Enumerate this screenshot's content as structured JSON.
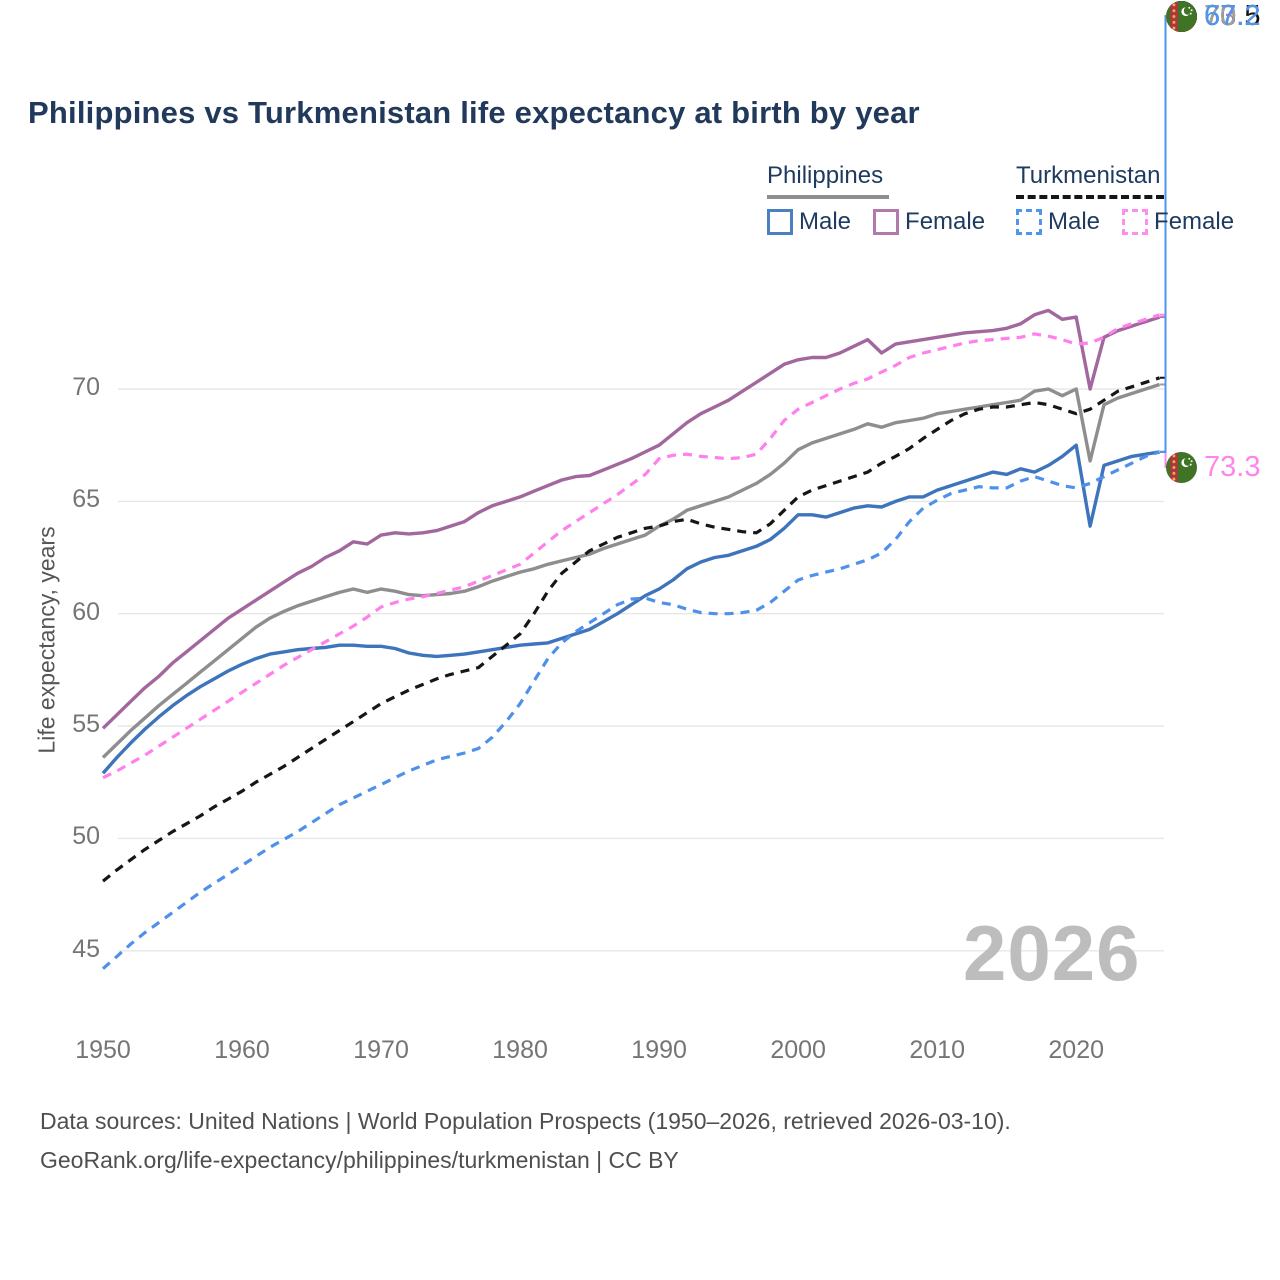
{
  "title": "Philippines vs Turkmenistan life expectancy at birth by year",
  "legend": {
    "philippines": {
      "label": "Philippines",
      "male_label": "Male",
      "female_label": "Female"
    },
    "turkmenistan": {
      "label": "Turkmenistan",
      "male_label": "Male",
      "female_label": "Female"
    }
  },
  "y_axis": {
    "label": "Life expectancy, years",
    "ticks": [
      70,
      65,
      60,
      55,
      50,
      45
    ]
  },
  "x_axis": {
    "ticks": [
      1950,
      1960,
      1970,
      1980,
      1990,
      2000,
      2010,
      2020
    ]
  },
  "watermark": "2026",
  "end_labels": [
    {
      "series": "tm_female",
      "flag": "turkmenistan-flag",
      "value": "73.3",
      "color": "#ff85e9"
    },
    {
      "series": "ph_female",
      "flag": "philippines-flag",
      "value": "73.2",
      "color": "#b57fb2"
    },
    {
      "series": "tm_total",
      "flag": "turkmenistan-flag",
      "value": "70.5",
      "color": "#121212"
    },
    {
      "series": "ph_total",
      "flag": "philippines-flag",
      "value": "70.2",
      "color": "#a0a0a0"
    },
    {
      "series": "ph_male",
      "flag": "philippines-flag",
      "value": "67.2",
      "color": "#4a7cc9"
    },
    {
      "series": "tm_male",
      "flag": "turkmenistan-flag",
      "value": "67.2",
      "color": "#4e95ec"
    }
  ],
  "footer": {
    "line1": "Data sources: United Nations | World Population Prospects (1950–2026, retrieved 2026-03-10).",
    "line2": "GeoRank.org/life-expectancy/philippines/turkmenistan | CC BY"
  },
  "colors": {
    "title": "#21395b",
    "grid": "#e7e7e7",
    "tick_text": "#757575",
    "watermark": "#bdbdbd",
    "footer_text": "#4f4f4f"
  },
  "chart_data": {
    "type": "line",
    "title": "Philippines vs Turkmenistan life expectancy at birth by year",
    "xlabel": "",
    "ylabel": "Life expectancy, years",
    "x_start": 1950,
    "x_end": 2026,
    "xticks": [
      1950,
      1960,
      1970,
      1980,
      1990,
      2000,
      2010,
      2020
    ],
    "yticks": [
      45,
      50,
      55,
      60,
      65,
      70
    ],
    "ylim": [
      43,
      75
    ],
    "grid": true,
    "legend_position": "top-right",
    "series": [
      {
        "id": "ph_total",
        "name": "Philippines — Total",
        "country": "Philippines",
        "sex": "total",
        "color": "#8e8e8e",
        "dash": null,
        "width": 3.4,
        "values": [
          53.6,
          54.2,
          54.8,
          55.35,
          55.9,
          56.4,
          56.9,
          57.4,
          57.9,
          58.4,
          58.9,
          59.4,
          59.8,
          60.1,
          60.35,
          60.55,
          60.75,
          60.95,
          61.1,
          60.95,
          61.1,
          61.0,
          60.85,
          60.8,
          60.85,
          60.9,
          61.0,
          61.2,
          61.45,
          61.65,
          61.85,
          62.0,
          62.2,
          62.35,
          62.5,
          62.65,
          62.9,
          63.1,
          63.3,
          63.5,
          63.9,
          64.2,
          64.6,
          64.8,
          65.0,
          65.2,
          65.5,
          65.8,
          66.2,
          66.7,
          67.3,
          67.6,
          67.8,
          68.0,
          68.2,
          68.45,
          68.3,
          68.5,
          68.6,
          68.7,
          68.9,
          69.0,
          69.1,
          69.2,
          69.3,
          69.4,
          69.5,
          69.9,
          70.0,
          69.7,
          70.0,
          66.8,
          69.3,
          69.6,
          69.8,
          70.0,
          70.2
        ]
      },
      {
        "id": "ph_female",
        "name": "Philippines — Female",
        "country": "Philippines",
        "sex": "female",
        "color": "#a2679c",
        "dash": null,
        "width": 3.4,
        "values": [
          54.9,
          55.5,
          56.1,
          56.7,
          57.2,
          57.8,
          58.3,
          58.8,
          59.3,
          59.8,
          60.2,
          60.6,
          61.0,
          61.4,
          61.8,
          62.1,
          62.5,
          62.8,
          63.2,
          63.1,
          63.5,
          63.6,
          63.55,
          63.6,
          63.7,
          63.9,
          64.1,
          64.5,
          64.8,
          65.0,
          65.2,
          65.45,
          65.7,
          65.95,
          66.1,
          66.15,
          66.4,
          66.65,
          66.9,
          67.2,
          67.5,
          68.0,
          68.5,
          68.9,
          69.2,
          69.5,
          69.9,
          70.3,
          70.7,
          71.1,
          71.3,
          71.4,
          71.4,
          71.6,
          71.9,
          72.2,
          71.6,
          72.0,
          72.1,
          72.2,
          72.3,
          72.4,
          72.5,
          72.55,
          72.6,
          72.7,
          72.9,
          73.3,
          73.5,
          73.1,
          73.2,
          70.0,
          72.3,
          72.6,
          72.8,
          73.0,
          73.2
        ]
      },
      {
        "id": "ph_male",
        "name": "Philippines — Male",
        "country": "Philippines",
        "sex": "male",
        "color": "#3d74bb",
        "dash": null,
        "width": 3.4,
        "values": [
          52.9,
          53.6,
          54.25,
          54.85,
          55.4,
          55.9,
          56.35,
          56.75,
          57.1,
          57.45,
          57.75,
          58.0,
          58.2,
          58.3,
          58.4,
          58.45,
          58.5,
          58.6,
          58.6,
          58.55,
          58.55,
          58.45,
          58.25,
          58.15,
          58.1,
          58.15,
          58.2,
          58.3,
          58.4,
          58.5,
          58.6,
          58.65,
          58.7,
          58.9,
          59.1,
          59.3,
          59.65,
          60.0,
          60.4,
          60.8,
          61.1,
          61.5,
          62.0,
          62.3,
          62.5,
          62.6,
          62.8,
          63.0,
          63.3,
          63.8,
          64.4,
          64.4,
          64.3,
          64.5,
          64.7,
          64.8,
          64.75,
          65.0,
          65.2,
          65.2,
          65.5,
          65.7,
          65.9,
          66.1,
          66.3,
          66.2,
          66.45,
          66.3,
          66.6,
          67.0,
          67.5,
          63.9,
          66.6,
          66.8,
          67.0,
          67.1,
          67.2
        ]
      },
      {
        "id": "tm_total",
        "name": "Turkmenistan — Total",
        "country": "Turkmenistan",
        "sex": "total",
        "color": "#161616",
        "dash": "9 7",
        "width": 3.2,
        "values": [
          48.1,
          48.6,
          49.05,
          49.5,
          49.9,
          50.3,
          50.65,
          51.0,
          51.4,
          51.75,
          52.1,
          52.5,
          52.85,
          53.2,
          53.6,
          54.0,
          54.4,
          54.8,
          55.2,
          55.6,
          56.0,
          56.3,
          56.6,
          56.85,
          57.1,
          57.3,
          57.45,
          57.6,
          58.1,
          58.6,
          59.1,
          60.0,
          61.0,
          61.8,
          62.3,
          62.8,
          63.1,
          63.4,
          63.6,
          63.8,
          63.9,
          64.1,
          64.2,
          64.0,
          63.85,
          63.75,
          63.65,
          63.6,
          64.0,
          64.6,
          65.2,
          65.5,
          65.7,
          65.9,
          66.1,
          66.3,
          66.7,
          67.0,
          67.35,
          67.8,
          68.2,
          68.6,
          68.9,
          69.1,
          69.2,
          69.2,
          69.3,
          69.4,
          69.3,
          69.1,
          68.9,
          69.1,
          69.5,
          69.9,
          70.1,
          70.3,
          70.5
        ]
      },
      {
        "id": "tm_female",
        "name": "Turkmenistan — Female",
        "country": "Turkmenistan",
        "sex": "female",
        "color": "#ff80ec",
        "dash": "9 7",
        "width": 3.2,
        "values": [
          52.7,
          53.0,
          53.35,
          53.7,
          54.1,
          54.5,
          54.9,
          55.3,
          55.7,
          56.1,
          56.5,
          56.9,
          57.3,
          57.7,
          58.05,
          58.4,
          58.75,
          59.1,
          59.45,
          59.85,
          60.3,
          60.5,
          60.65,
          60.75,
          60.9,
          61.05,
          61.2,
          61.45,
          61.7,
          61.95,
          62.2,
          62.7,
          63.2,
          63.7,
          64.1,
          64.5,
          64.9,
          65.3,
          65.75,
          66.2,
          66.9,
          67.05,
          67.1,
          67.0,
          66.95,
          66.9,
          66.95,
          67.1,
          67.8,
          68.6,
          69.1,
          69.4,
          69.7,
          70.0,
          70.25,
          70.45,
          70.75,
          71.05,
          71.4,
          71.6,
          71.75,
          71.9,
          72.05,
          72.15,
          72.2,
          72.25,
          72.3,
          72.45,
          72.35,
          72.2,
          72.0,
          72.05,
          72.3,
          72.7,
          72.9,
          73.1,
          73.3
        ]
      },
      {
        "id": "tm_male",
        "name": "Turkmenistan — Male",
        "country": "Turkmenistan",
        "sex": "male",
        "color": "#4e90ea",
        "dash": "9 7",
        "width": 3.2,
        "values": [
          44.2,
          44.75,
          45.3,
          45.8,
          46.25,
          46.7,
          47.15,
          47.6,
          48.0,
          48.4,
          48.8,
          49.2,
          49.6,
          49.95,
          50.3,
          50.7,
          51.1,
          51.5,
          51.8,
          52.1,
          52.4,
          52.7,
          53.0,
          53.25,
          53.5,
          53.65,
          53.8,
          54.0,
          54.5,
          55.2,
          56.0,
          57.0,
          58.0,
          58.7,
          59.2,
          59.6,
          60.0,
          60.4,
          60.65,
          60.7,
          60.5,
          60.4,
          60.2,
          60.05,
          60.0,
          60.0,
          60.05,
          60.15,
          60.5,
          61.0,
          61.5,
          61.7,
          61.85,
          62.0,
          62.2,
          62.4,
          62.7,
          63.3,
          64.1,
          64.7,
          65.05,
          65.35,
          65.5,
          65.65,
          65.6,
          65.6,
          65.9,
          66.1,
          65.9,
          65.7,
          65.6,
          65.8,
          66.1,
          66.4,
          66.7,
          67.0,
          67.2
        ]
      }
    ]
  }
}
